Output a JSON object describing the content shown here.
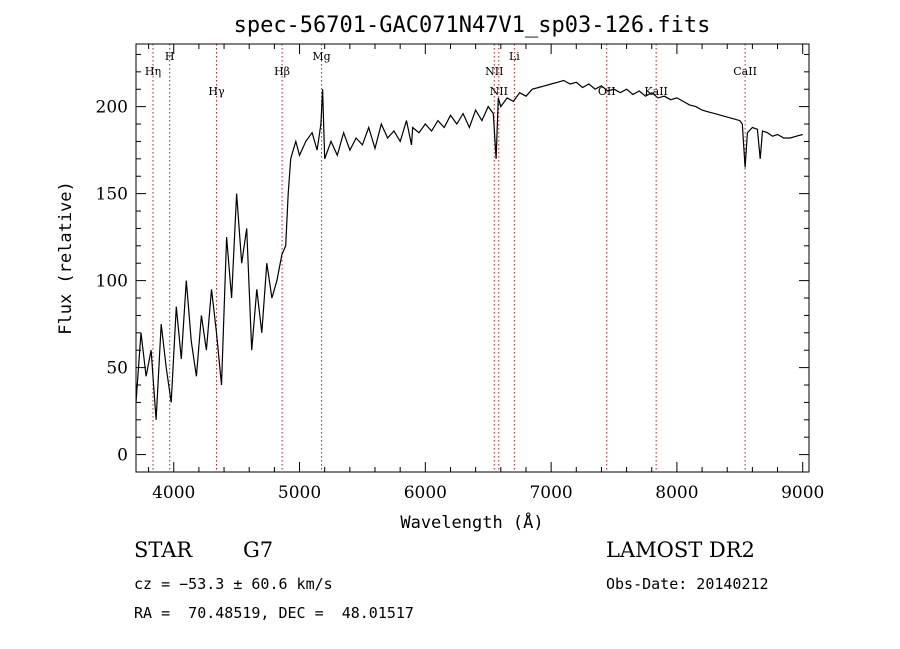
{
  "chart_data": {
    "type": "line",
    "title": "spec-56701-GAC071N47V1_sp03-126.fits",
    "xlabel": "Wavelength (Å)",
    "ylabel": "Flux (relative)",
    "xlim": [
      3700,
      9050
    ],
    "ylim": [
      -10,
      236
    ],
    "xticks": [
      4000,
      5000,
      6000,
      7000,
      8000,
      9000
    ],
    "yticks": [
      0,
      50,
      100,
      150,
      200
    ],
    "grid": false,
    "series": [
      {
        "x": [
          3700,
          3740,
          3780,
          3820,
          3860,
          3900,
          3940,
          3980,
          4020,
          4060,
          4100,
          4140,
          4180,
          4220,
          4260,
          4300,
          4340,
          4380,
          4420,
          4460,
          4500,
          4540,
          4580,
          4620,
          4660,
          4700,
          4740,
          4780,
          4820,
          4860,
          4890,
          4910,
          4930,
          4950,
          4970,
          5000,
          5050,
          5100,
          5140,
          5170,
          5183,
          5200,
          5250,
          5300,
          5350,
          5400,
          5450,
          5500,
          5550,
          5600,
          5650,
          5700,
          5750,
          5800,
          5850,
          5890,
          5900,
          5950,
          6000,
          6050,
          6100,
          6150,
          6200,
          6250,
          6300,
          6350,
          6400,
          6450,
          6500,
          6540,
          6563,
          6580,
          6600,
          6650,
          6700,
          6750,
          6800,
          6850,
          6900,
          6950,
          7000,
          7050,
          7100,
          7150,
          7200,
          7250,
          7300,
          7350,
          7400,
          7450,
          7500,
          7550,
          7600,
          7650,
          7700,
          7750,
          7800,
          7850,
          7900,
          7950,
          8000,
          8050,
          8100,
          8150,
          8200,
          8250,
          8300,
          8350,
          8400,
          8450,
          8500,
          8520,
          8542,
          8560,
          8600,
          8640,
          8662,
          8680,
          8720,
          8760,
          8800,
          8850,
          8900,
          8950,
          9000
        ],
        "y": [
          30,
          70,
          45,
          60,
          20,
          75,
          50,
          30,
          85,
          55,
          100,
          65,
          45,
          80,
          60,
          95,
          70,
          40,
          125,
          90,
          150,
          110,
          130,
          60,
          95,
          70,
          110,
          90,
          100,
          115,
          120,
          150,
          170,
          175,
          180,
          172,
          180,
          185,
          175,
          190,
          210,
          170,
          180,
          172,
          185,
          175,
          182,
          178,
          188,
          176,
          190,
          182,
          186,
          180,
          192,
          178,
          188,
          185,
          190,
          186,
          192,
          188,
          195,
          190,
          196,
          188,
          198,
          192,
          200,
          196,
          170,
          205,
          200,
          205,
          203,
          208,
          206,
          210,
          211,
          212,
          213,
          214,
          215,
          213,
          214,
          211,
          213,
          210,
          212,
          209,
          210,
          208,
          210,
          207,
          209,
          206,
          208,
          205,
          206,
          204,
          205,
          203,
          201,
          200,
          198,
          197,
          196,
          195,
          194,
          193,
          192,
          190,
          165,
          185,
          188,
          187,
          170,
          186,
          185,
          183,
          184,
          182,
          182,
          183,
          184
        ]
      }
    ],
    "lines": [
      {
        "label": "Hη",
        "x": 3835
      },
      {
        "label": "H",
        "x": 3968
      },
      {
        "label": "Hγ",
        "x": 4340
      },
      {
        "label": "Hβ",
        "x": 4861
      },
      {
        "label": "Mg",
        "x": 5175
      },
      {
        "label": "NII",
        "x": 6548
      },
      {
        "label": "NII",
        "x": 6584
      },
      {
        "label": "Li",
        "x": 6708
      },
      {
        "label": "OII",
        "x": 7442
      },
      {
        "label": "KaII",
        "x": 7835
      },
      {
        "label": "CaII",
        "x": 8542
      }
    ]
  },
  "info": {
    "obj_class": "STAR",
    "subclass": "G7",
    "survey": "LAMOST DR2",
    "cz": "cz = −53.3 ± 60.6 km/s",
    "obs_date": "Obs-Date: 20140212",
    "radec": "RA =  70.48519, DEC =  48.01517"
  }
}
